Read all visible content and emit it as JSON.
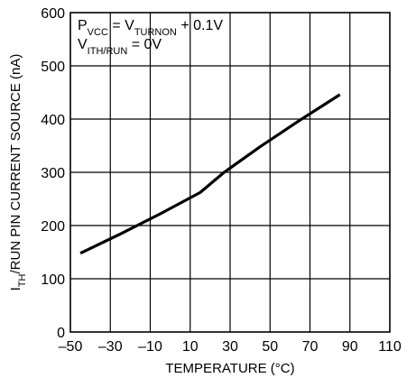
{
  "chart_data": {
    "type": "line",
    "xlabel": "TEMPERATURE (°C)",
    "ylabel": {
      "main_prefix": "I",
      "main_sub": "TH",
      "main_suffix": "/RUN PIN CURRENT SOURCE (nA)"
    },
    "xlim": [
      -50,
      110
    ],
    "ylim": [
      0,
      600
    ],
    "x_ticks": [
      -50,
      -30,
      -10,
      10,
      30,
      50,
      70,
      90,
      110
    ],
    "x_tick_labels": [
      "–50",
      "–30",
      "–10",
      "10",
      "30",
      "50",
      "70",
      "90",
      "110"
    ],
    "y_ticks": [
      0,
      100,
      200,
      300,
      400,
      500,
      600
    ],
    "y_tick_labels": [
      "0",
      "100",
      "200",
      "300",
      "400",
      "500",
      "600"
    ],
    "grid": true,
    "annotations": {
      "line1": {
        "a": "P",
        "a_sub": "VCC",
        "b": " = V",
        "b_sub": "TURNON",
        "c": " + 0.1V"
      },
      "line2": {
        "a": "V",
        "a_sub": "ITH/RUN",
        "b": " = 0V"
      }
    },
    "series": [
      {
        "x": [
          -45,
          -25,
          -5,
          15,
          27,
          45,
          65,
          85
        ],
        "y": [
          148,
          184,
          222,
          262,
          300,
          348,
          398,
          446
        ]
      }
    ]
  }
}
